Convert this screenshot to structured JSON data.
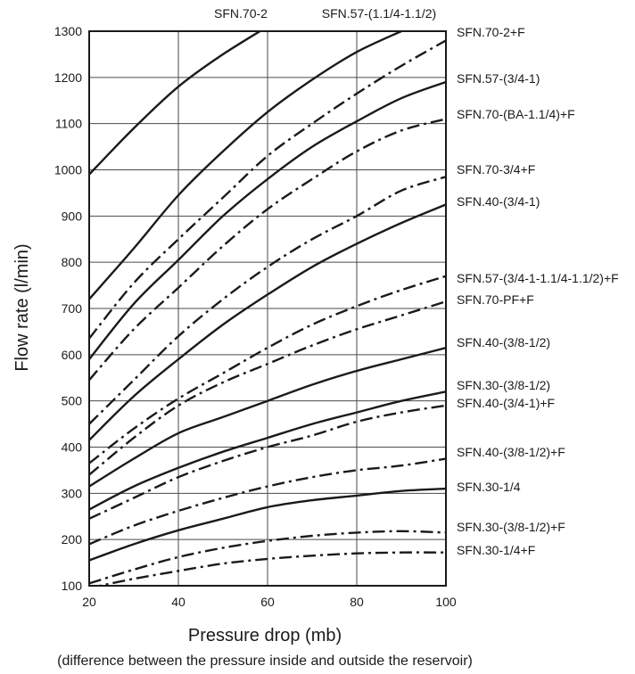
{
  "chart_data": {
    "type": "line",
    "xlabel": "Pressure drop (mb)",
    "xlabel_note": "(difference between the pressure inside and outside the reservoir)",
    "ylabel": "Flow rate (l/min)",
    "xlim": [
      20,
      100
    ],
    "ylim": [
      100,
      1300
    ],
    "x_ticks": [
      20,
      40,
      60,
      80,
      100
    ],
    "y_ticks": [
      100,
      200,
      300,
      400,
      500,
      600,
      700,
      800,
      900,
      1000,
      1100,
      1200,
      1300
    ],
    "grid": true,
    "x": [
      20,
      30,
      40,
      50,
      60,
      70,
      80,
      90,
      100
    ],
    "series": [
      {
        "name": "SFN.70-2",
        "style": "solid",
        "values": [
          990,
          1090,
          1180,
          1250,
          1310,
          null,
          null,
          null,
          null
        ]
      },
      {
        "name": "SFN.57-(1.1/4-1.1/2)",
        "style": "solid",
        "values": [
          720,
          830,
          945,
          1040,
          1125,
          1195,
          1255,
          1300,
          null
        ]
      },
      {
        "name": "SFN.70-2+F",
        "style": "dashdot",
        "values": [
          635,
          755,
          850,
          940,
          1030,
          1100,
          1165,
          1225,
          1280
        ]
      },
      {
        "name": "SFN.57-(3/4-1)",
        "style": "solid",
        "values": [
          590,
          710,
          805,
          900,
          980,
          1050,
          1105,
          1155,
          1190
        ]
      },
      {
        "name": "SFN.70-(BA-1.1/4)+F",
        "style": "dashdot",
        "values": [
          545,
          655,
          745,
          835,
          915,
          980,
          1040,
          1085,
          1110
        ]
      },
      {
        "name": "SFN.70-3/4+F",
        "style": "dashdot",
        "values": [
          450,
          545,
          640,
          720,
          790,
          850,
          900,
          955,
          985
        ]
      },
      {
        "name": "SFN.40-(3/4-1)",
        "style": "solid",
        "values": [
          415,
          510,
          590,
          665,
          730,
          790,
          840,
          885,
          925
        ]
      },
      {
        "name": "SFN.57-(3/4-1-1.1/4-1.1/2)+F",
        "style": "dashdot",
        "values": [
          365,
          440,
          505,
          560,
          615,
          665,
          705,
          740,
          770
        ]
      },
      {
        "name": "SFN.70-PF+F",
        "style": "dashdot",
        "values": [
          340,
          420,
          490,
          540,
          580,
          620,
          655,
          685,
          715
        ]
      },
      {
        "name": "SFN.40-(3/8-1/2)",
        "style": "solid",
        "values": [
          315,
          375,
          430,
          465,
          500,
          535,
          565,
          590,
          615
        ]
      },
      {
        "name": "SFN.30-(3/8-1/2)",
        "style": "solid",
        "values": [
          265,
          315,
          355,
          390,
          420,
          450,
          475,
          500,
          520
        ]
      },
      {
        "name": "SFN.40-(3/4-1)+F",
        "style": "dashdot",
        "values": [
          245,
          290,
          335,
          370,
          400,
          425,
          455,
          475,
          490
        ]
      },
      {
        "name": "SFN.40-(3/8-1/2)+F",
        "style": "dashdot",
        "values": [
          190,
          230,
          262,
          290,
          315,
          335,
          350,
          360,
          375
        ]
      },
      {
        "name": "SFN.30-1/4",
        "style": "solid",
        "values": [
          155,
          190,
          220,
          245,
          270,
          285,
          295,
          305,
          310
        ]
      },
      {
        "name": "SFN.30-(3/8-1/2)+F",
        "style": "dashdot",
        "values": [
          105,
          135,
          162,
          182,
          197,
          208,
          215,
          218,
          215
        ]
      },
      {
        "name": "SFN.30-1/4+F",
        "style": "dashdot",
        "values": [
          95,
          115,
          132,
          148,
          158,
          165,
          170,
          172,
          172
        ]
      }
    ]
  }
}
